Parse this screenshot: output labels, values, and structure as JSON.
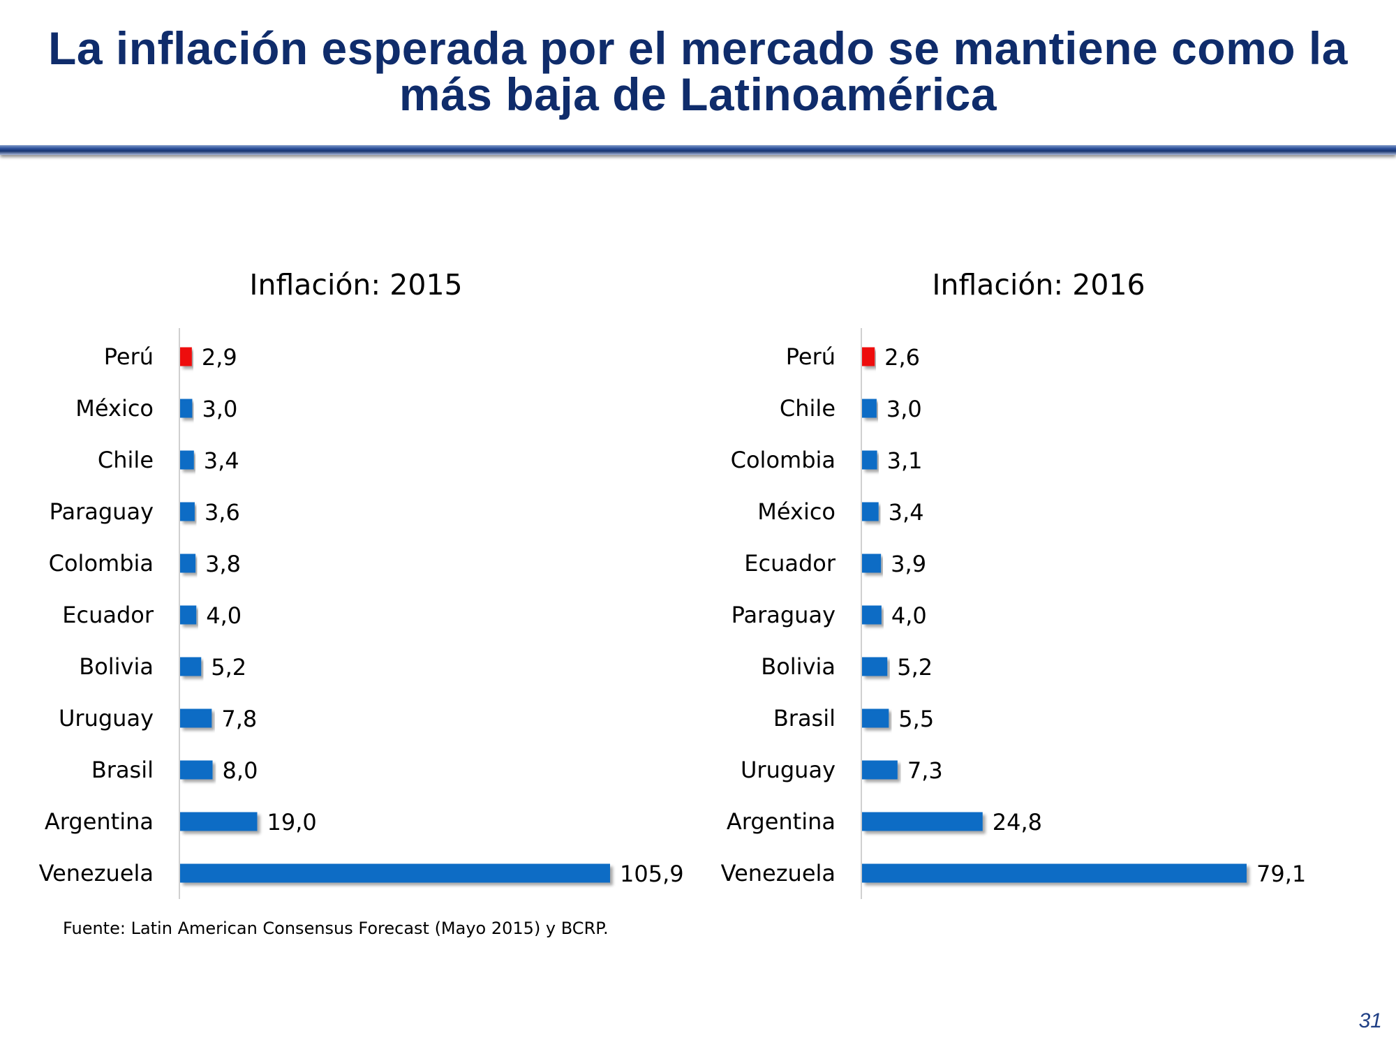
{
  "slide": {
    "title_line1": "La inflación esperada por el mercado se mantiene como la",
    "title_line2": "más baja de Latinoamérica",
    "source": "Fuente: Latin American Consensus Forecast (Mayo 2015) y BCRP.",
    "page_number": "31"
  },
  "colors": {
    "title": "#0f2c6b",
    "bar": "#0b6cc5",
    "highlight": "#ee1111",
    "axis": "#d0d0d0"
  },
  "chart_data": [
    {
      "type": "bar",
      "orientation": "horizontal",
      "title": "Inflación: 2015",
      "categories": [
        "Perú",
        "México",
        "Chile",
        "Paraguay",
        "Colombia",
        "Ecuador",
        "Bolivia",
        "Uruguay",
        "Brasil",
        "Argentina",
        "Venezuela"
      ],
      "values": [
        2.9,
        3.0,
        3.4,
        3.6,
        3.8,
        4.0,
        5.2,
        7.8,
        8.0,
        19.0,
        105.9
      ],
      "value_labels": [
        "2,9",
        "3,0",
        "3,4",
        "3,6",
        "3,8",
        "4,0",
        "5,2",
        "7,8",
        "8,0",
        "19,0",
        "105,9"
      ],
      "highlight_category": "Perú",
      "xlim": [
        0,
        105.9
      ],
      "grid": false
    },
    {
      "type": "bar",
      "orientation": "horizontal",
      "title": "Inflación: 2016",
      "categories": [
        "Perú",
        "Chile",
        "Colombia",
        "México",
        "Ecuador",
        "Paraguay",
        "Bolivia",
        "Brasil",
        "Uruguay",
        "Argentina",
        "Venezuela"
      ],
      "values": [
        2.6,
        3.0,
        3.1,
        3.4,
        3.9,
        4.0,
        5.2,
        5.5,
        7.3,
        24.8,
        79.1
      ],
      "value_labels": [
        "2,6",
        "3,0",
        "3,1",
        "3,4",
        "3,9",
        "4,0",
        "5,2",
        "5,5",
        "7,3",
        "24,8",
        "79,1"
      ],
      "highlight_category": "Perú",
      "xlim": [
        0,
        79.1
      ],
      "grid": false
    }
  ]
}
